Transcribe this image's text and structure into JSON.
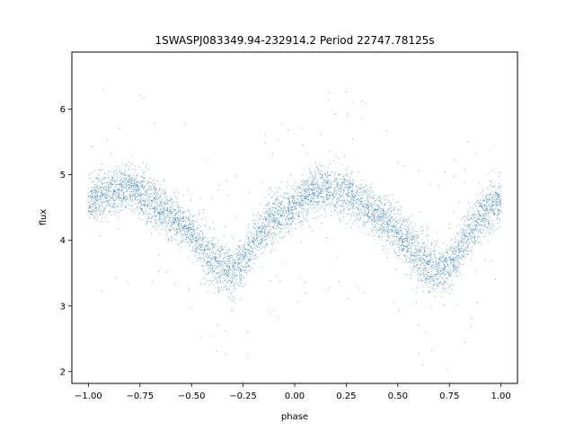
{
  "chart_data": {
    "type": "scatter",
    "title": "1SWASPJ083349.94-232914.2 Period 22747.78125s",
    "xlabel": "phase",
    "ylabel": "flux",
    "xlim": [
      -1.08,
      1.08
    ],
    "ylim": [
      1.82,
      6.87
    ],
    "xticks": [
      {
        "value": -1.0,
        "label": "−1.00"
      },
      {
        "value": -0.75,
        "label": "−0.75"
      },
      {
        "value": -0.5,
        "label": "−0.50"
      },
      {
        "value": -0.25,
        "label": "−0.25"
      },
      {
        "value": 0.0,
        "label": "0.00"
      },
      {
        "value": 0.25,
        "label": "0.25"
      },
      {
        "value": 0.5,
        "label": "0.50"
      },
      {
        "value": 0.75,
        "label": "0.75"
      },
      {
        "value": 1.0,
        "label": "1.00"
      }
    ],
    "yticks": [
      {
        "value": 2,
        "label": "2"
      },
      {
        "value": 3,
        "label": "3"
      },
      {
        "value": 4,
        "label": "4"
      },
      {
        "value": 5,
        "label": "5"
      },
      {
        "value": 6,
        "label": "6"
      }
    ],
    "grid": false,
    "marker_color": "#1f77b4",
    "series": [
      {
        "x": [
          -1.0,
          -0.95,
          -0.9,
          -0.85,
          -0.8,
          -0.75,
          -0.7,
          -0.65,
          -0.6,
          -0.55,
          -0.5,
          -0.45,
          -0.4,
          -0.35,
          -0.3,
          -0.25,
          -0.2,
          -0.15,
          -0.1,
          -0.05,
          0.0,
          0.05,
          0.1,
          0.15,
          0.2,
          0.25,
          0.3,
          0.35,
          0.4,
          0.45,
          0.5,
          0.55,
          0.6,
          0.65,
          0.7,
          0.75,
          0.8,
          0.85,
          0.9,
          0.95,
          1.0
        ],
        "y": [
          4.6,
          4.7,
          4.72,
          4.78,
          4.8,
          4.72,
          4.6,
          4.5,
          4.38,
          4.25,
          4.1,
          3.92,
          3.72,
          3.6,
          3.55,
          3.68,
          3.95,
          4.2,
          4.35,
          4.45,
          4.55,
          4.65,
          4.75,
          4.8,
          4.78,
          4.72,
          4.62,
          4.5,
          4.38,
          4.25,
          4.12,
          3.95,
          3.72,
          3.6,
          3.55,
          3.62,
          3.85,
          4.15,
          4.35,
          4.5,
          4.62
        ],
        "spread": [
          0.35,
          0.35,
          0.35,
          0.35,
          0.35,
          0.35,
          0.35,
          0.35,
          0.35,
          0.35,
          0.35,
          0.38,
          0.4,
          0.4,
          0.4,
          0.38,
          0.35,
          0.35,
          0.35,
          0.35,
          0.35,
          0.35,
          0.35,
          0.35,
          0.35,
          0.35,
          0.35,
          0.35,
          0.35,
          0.35,
          0.35,
          0.38,
          0.4,
          0.4,
          0.4,
          0.38,
          0.35,
          0.35,
          0.35,
          0.35,
          0.35
        ]
      }
    ]
  }
}
